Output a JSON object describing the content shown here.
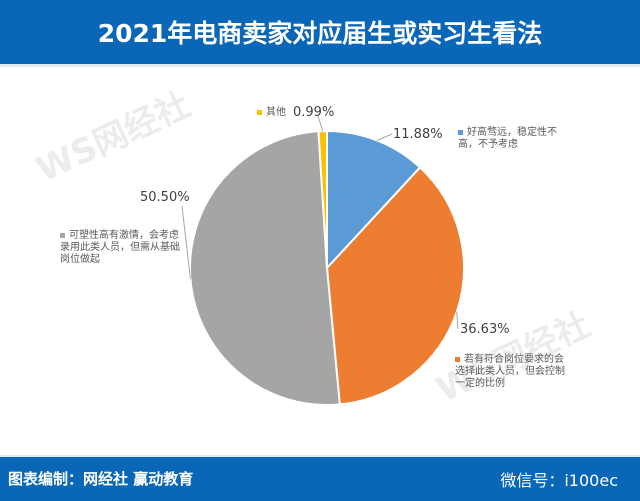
{
  "header": {
    "title": "2021年电商卖家对应届生或实习生看法"
  },
  "footer": {
    "source": "图表编制：网经社  赢动教育",
    "wechat": "微信号：i100ec"
  },
  "watermark": "WS网经社",
  "chart_data": {
    "type": "pie",
    "title": "2021年电商卖家对应届生或实习生看法",
    "start": "12 o'clock, clockwise",
    "slices": [
      {
        "label": "好高骛远，稳定性不高，不予考虑",
        "value": 11.88,
        "pct_label": "11.88%",
        "color": "#5b9bd5"
      },
      {
        "label": "若有符合岗位要求的会选择此类人员，但会控制一定的比例",
        "value": 36.63,
        "pct_label": "36.63%",
        "color": "#ed7d31"
      },
      {
        "label": "可塑性高有激情，会考虑录用此类人员，但需从基础岗位做起",
        "value": 50.5,
        "pct_label": "50.50%",
        "color": "#a5a5a5"
      },
      {
        "label": "其他",
        "value": 0.99,
        "pct_label": "0.99%",
        "color": "#ffc000"
      }
    ]
  }
}
